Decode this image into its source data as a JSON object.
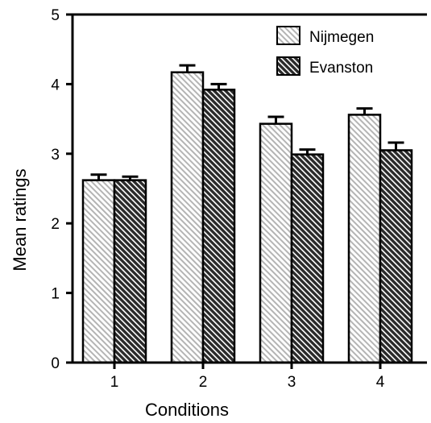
{
  "chart_data": {
    "type": "bar",
    "title": "",
    "xlabel": "Conditions",
    "ylabel": "Mean  ratings",
    "categories": [
      "1",
      "2",
      "3",
      "4"
    ],
    "ylim": [
      0,
      5
    ],
    "yticks": [
      "0",
      "1",
      "2",
      "3",
      "4",
      "5"
    ],
    "grid": false,
    "legend_position": "top-right",
    "series": [
      {
        "name": "Nijmegen",
        "values": [
          2.62,
          4.17,
          3.43,
          3.56
        ],
        "errors": [
          0.08,
          0.1,
          0.1,
          0.09
        ],
        "pattern": "light-diagonal-hatch"
      },
      {
        "name": "Evanston",
        "values": [
          2.62,
          3.92,
          2.99,
          3.05
        ],
        "errors": [
          0.05,
          0.08,
          0.07,
          0.11
        ],
        "pattern": "dark-diagonal-hatch"
      }
    ],
    "colors": {
      "axis": "#000000",
      "hatch_light": "#b4b4b4",
      "hatch_dark": "#2a2a2a",
      "background": "#ffffff"
    }
  }
}
